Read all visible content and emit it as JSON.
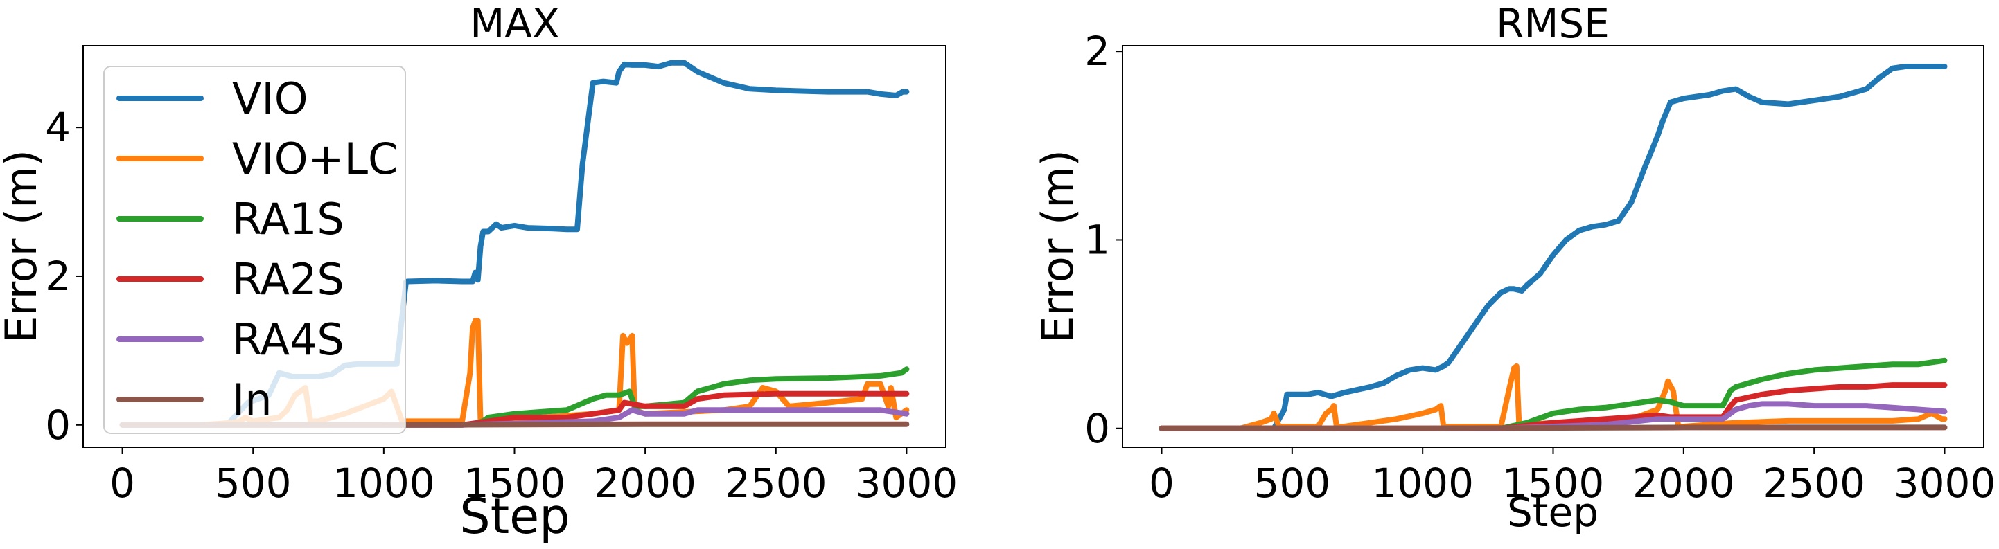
{
  "chart_data": [
    {
      "type": "line",
      "title": "MAX",
      "xlabel": "Step",
      "ylabel": "Error (m)",
      "xlim": [
        -150,
        3150
      ],
      "ylim": [
        -0.3,
        5.1
      ],
      "xticks": [
        0,
        500,
        1000,
        1500,
        2000,
        2500,
        3000
      ],
      "yticks": [
        0,
        2,
        4
      ],
      "grid": false,
      "legend": "upper-left",
      "series": [
        {
          "name": "VIO",
          "color": "#1f77b4",
          "x": [
            0,
            400,
            480,
            560,
            600,
            650,
            680,
            750,
            800,
            850,
            900,
            1000,
            1050,
            1085,
            1090,
            1200,
            1300,
            1340,
            1350,
            1360,
            1370,
            1380,
            1400,
            1430,
            1450,
            1500,
            1550,
            1650,
            1700,
            1740,
            1760,
            1800,
            1840,
            1890,
            1900,
            1920,
            1950,
            2000,
            2050,
            2100,
            2150,
            2200,
            2300,
            2400,
            2500,
            2700,
            2850,
            2900,
            2960,
            2985,
            3000
          ],
          "y": [
            0,
            0,
            0.3,
            0.4,
            0.7,
            0.65,
            0.65,
            0.65,
            0.68,
            0.8,
            0.82,
            0.82,
            0.82,
            1.92,
            1.93,
            1.94,
            1.93,
            1.93,
            2.05,
            1.95,
            2.4,
            2.6,
            2.6,
            2.7,
            2.65,
            2.68,
            2.65,
            2.64,
            2.63,
            2.63,
            3.5,
            4.6,
            4.62,
            4.6,
            4.75,
            4.85,
            4.84,
            4.84,
            4.82,
            4.87,
            4.87,
            4.75,
            4.6,
            4.52,
            4.5,
            4.48,
            4.48,
            4.45,
            4.43,
            4.48,
            4.48
          ]
        },
        {
          "name": "VIO+LC",
          "color": "#ff7f0e",
          "x": [
            0,
            300,
            420,
            450,
            470,
            500,
            600,
            630,
            660,
            700,
            720,
            750,
            800,
            850,
            1000,
            1030,
            1070,
            1100,
            1300,
            1330,
            1340,
            1350,
            1360,
            1370,
            1380,
            1400,
            1600,
            1800,
            1900,
            1915,
            1930,
            1950,
            1960,
            2000,
            2300,
            2400,
            2450,
            2500,
            2550,
            2700,
            2830,
            2850,
            2900,
            2930,
            2940,
            2960,
            3000
          ],
          "y": [
            0,
            0,
            0.03,
            0.05,
            0.1,
            0.05,
            0.1,
            0.2,
            0.4,
            0.5,
            0.05,
            0.05,
            0.1,
            0.15,
            0.35,
            0.45,
            0.05,
            0.05,
            0.05,
            0.7,
            1.3,
            1.4,
            1.4,
            0.05,
            0.05,
            0.05,
            0.1,
            0.15,
            0.2,
            1.2,
            1.1,
            1.2,
            0.2,
            0.15,
            0.2,
            0.25,
            0.5,
            0.45,
            0.25,
            0.3,
            0.35,
            0.55,
            0.55,
            0.25,
            0.5,
            0.1,
            0.2
          ]
        },
        {
          "name": "RA1S",
          "color": "#2ca02c",
          "x": [
            0,
            1300,
            1350,
            1380,
            1400,
            1500,
            1700,
            1800,
            1850,
            1900,
            1940,
            1960,
            2000,
            2150,
            2200,
            2300,
            2400,
            2500,
            2700,
            2900,
            2980,
            3000
          ],
          "y": [
            0,
            0,
            0.02,
            0.05,
            0.1,
            0.15,
            0.2,
            0.35,
            0.4,
            0.4,
            0.45,
            0.25,
            0.25,
            0.3,
            0.45,
            0.55,
            0.6,
            0.62,
            0.63,
            0.66,
            0.7,
            0.75
          ]
        },
        {
          "name": "RA2S",
          "color": "#d62728",
          "x": [
            0,
            1300,
            1400,
            1500,
            1700,
            1800,
            1900,
            1920,
            2000,
            2150,
            2200,
            2300,
            2500,
            2700,
            2900,
            3000
          ],
          "y": [
            0,
            0,
            0.05,
            0.1,
            0.1,
            0.15,
            0.2,
            0.3,
            0.25,
            0.25,
            0.35,
            0.4,
            0.42,
            0.42,
            0.42,
            0.42
          ]
        },
        {
          "name": "RA4S",
          "color": "#9467bd",
          "x": [
            0,
            1300,
            1800,
            1900,
            1950,
            2000,
            2150,
            2200,
            2300,
            2500,
            2700,
            2900,
            3000
          ],
          "y": [
            0,
            0,
            0.05,
            0.1,
            0.2,
            0.15,
            0.15,
            0.2,
            0.2,
            0.2,
            0.2,
            0.2,
            0.15
          ]
        },
        {
          "name": "In",
          "color": "#8c564b",
          "x": [
            0,
            1000,
            2000,
            3000
          ],
          "y": [
            0,
            0,
            0.01,
            0.01
          ]
        }
      ]
    },
    {
      "type": "line",
      "title": "RMSE",
      "xlabel": "Step",
      "ylabel": "Error (m)",
      "xlim": [
        -150,
        3150
      ],
      "ylim": [
        -0.1,
        2.03
      ],
      "xticks": [
        0,
        500,
        1000,
        1500,
        2000,
        2500,
        3000
      ],
      "yticks": [
        0,
        1,
        2
      ],
      "grid": false,
      "series": [
        {
          "name": "VIO",
          "color": "#1f77b4",
          "x": [
            0,
            430,
            470,
            480,
            500,
            560,
            600,
            650,
            700,
            800,
            850,
            900,
            950,
            1000,
            1050,
            1080,
            1100,
            1150,
            1200,
            1250,
            1300,
            1330,
            1350,
            1380,
            1400,
            1450,
            1500,
            1550,
            1600,
            1650,
            1700,
            1750,
            1800,
            1850,
            1900,
            1920,
            1950,
            2000,
            2050,
            2100,
            2150,
            2200,
            2250,
            2300,
            2400,
            2500,
            2600,
            2700,
            2750,
            2800,
            2850,
            2900,
            2950,
            3000
          ],
          "y": [
            0,
            0,
            0.1,
            0.18,
            0.18,
            0.18,
            0.19,
            0.17,
            0.19,
            0.22,
            0.24,
            0.28,
            0.31,
            0.32,
            0.31,
            0.33,
            0.35,
            0.45,
            0.55,
            0.65,
            0.72,
            0.74,
            0.74,
            0.73,
            0.76,
            0.82,
            0.92,
            1.0,
            1.05,
            1.07,
            1.08,
            1.1,
            1.2,
            1.38,
            1.55,
            1.63,
            1.73,
            1.75,
            1.76,
            1.77,
            1.79,
            1.8,
            1.76,
            1.73,
            1.72,
            1.74,
            1.76,
            1.8,
            1.86,
            1.91,
            1.92,
            1.92,
            1.92,
            1.92
          ]
        },
        {
          "name": "VIO+LC",
          "color": "#ff7f0e",
          "x": [
            0,
            300,
            380,
            420,
            430,
            450,
            500,
            600,
            630,
            650,
            660,
            670,
            700,
            900,
            1000,
            1050,
            1070,
            1080,
            1100,
            1300,
            1330,
            1350,
            1360,
            1370,
            1380,
            1400,
            1500,
            1800,
            1900,
            1930,
            1940,
            1960,
            1980,
            2000,
            2100,
            2200,
            2400,
            2600,
            2800,
            2900,
            2950,
            2990,
            3000
          ],
          "y": [
            0,
            0,
            0.03,
            0.05,
            0.08,
            0.01,
            0.01,
            0.01,
            0.08,
            0.1,
            0.12,
            0.01,
            0.01,
            0.05,
            0.08,
            0.1,
            0.12,
            0.01,
            0.01,
            0.01,
            0.2,
            0.32,
            0.33,
            0.01,
            0.01,
            0.02,
            0.03,
            0.05,
            0.1,
            0.2,
            0.25,
            0.2,
            0.01,
            0.01,
            0.02,
            0.03,
            0.04,
            0.04,
            0.04,
            0.05,
            0.08,
            0.05,
            0.05
          ]
        },
        {
          "name": "RA1S",
          "color": "#2ca02c",
          "x": [
            0,
            1300,
            1400,
            1500,
            1600,
            1700,
            1800,
            1900,
            1950,
            2000,
            2100,
            2150,
            2180,
            2200,
            2300,
            2400,
            2500,
            2600,
            2700,
            2800,
            2900,
            3000
          ],
          "y": [
            0,
            0,
            0.03,
            0.08,
            0.1,
            0.11,
            0.13,
            0.15,
            0.14,
            0.12,
            0.12,
            0.12,
            0.2,
            0.22,
            0.26,
            0.29,
            0.31,
            0.32,
            0.33,
            0.34,
            0.34,
            0.36
          ]
        },
        {
          "name": "RA2S",
          "color": "#d62728",
          "x": [
            0,
            1300,
            1500,
            1700,
            1900,
            1950,
            2000,
            2150,
            2180,
            2200,
            2300,
            2400,
            2500,
            2600,
            2700,
            2800,
            2900,
            3000
          ],
          "y": [
            0,
            0,
            0.03,
            0.05,
            0.07,
            0.06,
            0.06,
            0.06,
            0.12,
            0.15,
            0.18,
            0.2,
            0.21,
            0.22,
            0.22,
            0.23,
            0.23,
            0.23
          ]
        },
        {
          "name": "RA4S",
          "color": "#9467bd",
          "x": [
            0,
            1300,
            1700,
            1900,
            1950,
            2000,
            2150,
            2200,
            2250,
            2300,
            2400,
            2500,
            2600,
            2700,
            2800,
            2900,
            3000
          ],
          "y": [
            0,
            0,
            0.02,
            0.05,
            0.05,
            0.05,
            0.05,
            0.1,
            0.12,
            0.13,
            0.13,
            0.12,
            0.12,
            0.12,
            0.11,
            0.1,
            0.09
          ]
        },
        {
          "name": "In",
          "color": "#8c564b",
          "x": [
            0,
            1000,
            2000,
            3000
          ],
          "y": [
            0,
            0,
            0.005,
            0.005
          ]
        }
      ]
    }
  ]
}
